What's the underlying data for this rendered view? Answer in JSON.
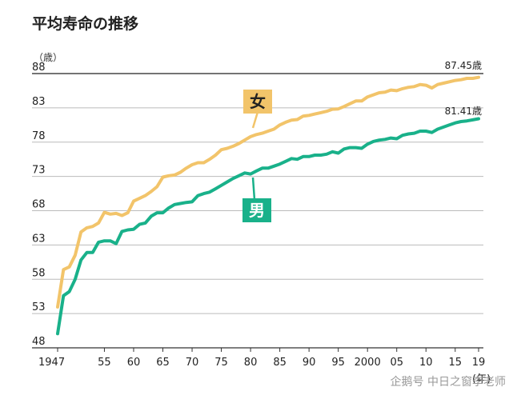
{
  "chart_data": {
    "type": "line",
    "title": "平均寿命の推移",
    "unit_label": "（歳）",
    "x_unit_label": "(年)",
    "xlim": [
      1947,
      2019
    ],
    "ylim": [
      48,
      88
    ],
    "grid": true,
    "y_ticks": [
      48,
      53,
      58,
      63,
      68,
      73,
      78,
      83,
      88
    ],
    "x_ticks": [
      {
        "value": 1947,
        "label": "1947"
      },
      {
        "value": 1955,
        "label": "55"
      },
      {
        "value": 1960,
        "label": "60"
      },
      {
        "value": 1965,
        "label": "65"
      },
      {
        "value": 1970,
        "label": "70"
      },
      {
        "value": 1975,
        "label": "75"
      },
      {
        "value": 1980,
        "label": "80"
      },
      {
        "value": 1985,
        "label": "85"
      },
      {
        "value": 1990,
        "label": "90"
      },
      {
        "value": 1995,
        "label": "95"
      },
      {
        "value": 2000,
        "label": "2000"
      },
      {
        "value": 2005,
        "label": "05"
      },
      {
        "value": 2010,
        "label": "10"
      },
      {
        "value": 2015,
        "label": "15"
      },
      {
        "value": 2019,
        "label": "19"
      }
    ],
    "series": [
      {
        "name": "女",
        "color": "#F2C46A",
        "end_label": "87.45歳",
        "points": [
          [
            1947,
            53.96
          ],
          [
            1948,
            59.4
          ],
          [
            1949,
            59.8
          ],
          [
            1950,
            61.5
          ],
          [
            1951,
            64.9
          ],
          [
            1952,
            65.5
          ],
          [
            1953,
            65.7
          ],
          [
            1954,
            66.2
          ],
          [
            1955,
            67.75
          ],
          [
            1956,
            67.5
          ],
          [
            1957,
            67.6
          ],
          [
            1958,
            67.3
          ],
          [
            1959,
            67.7
          ],
          [
            1960,
            69.4
          ],
          [
            1961,
            69.8
          ],
          [
            1962,
            70.2
          ],
          [
            1963,
            70.8
          ],
          [
            1964,
            71.5
          ],
          [
            1965,
            72.9
          ],
          [
            1966,
            73.1
          ],
          [
            1967,
            73.2
          ],
          [
            1968,
            73.6
          ],
          [
            1969,
            74.2
          ],
          [
            1970,
            74.7
          ],
          [
            1971,
            75.0
          ],
          [
            1972,
            75.0
          ],
          [
            1973,
            75.5
          ],
          [
            1974,
            76.1
          ],
          [
            1975,
            76.9
          ],
          [
            1976,
            77.1
          ],
          [
            1977,
            77.4
          ],
          [
            1978,
            77.8
          ],
          [
            1979,
            78.3
          ],
          [
            1980,
            78.8
          ],
          [
            1981,
            79.1
          ],
          [
            1982,
            79.3
          ],
          [
            1983,
            79.6
          ],
          [
            1984,
            79.9
          ],
          [
            1985,
            80.5
          ],
          [
            1986,
            80.9
          ],
          [
            1987,
            81.2
          ],
          [
            1988,
            81.3
          ],
          [
            1989,
            81.8
          ],
          [
            1990,
            81.9
          ],
          [
            1991,
            82.1
          ],
          [
            1992,
            82.3
          ],
          [
            1993,
            82.5
          ],
          [
            1994,
            82.8
          ],
          [
            1995,
            82.85
          ],
          [
            1996,
            83.2
          ],
          [
            1997,
            83.6
          ],
          [
            1998,
            84.0
          ],
          [
            1999,
            84.0
          ],
          [
            2000,
            84.6
          ],
          [
            2001,
            84.9
          ],
          [
            2002,
            85.2
          ],
          [
            2003,
            85.3
          ],
          [
            2004,
            85.6
          ],
          [
            2005,
            85.5
          ],
          [
            2006,
            85.8
          ],
          [
            2007,
            86.0
          ],
          [
            2008,
            86.1
          ],
          [
            2009,
            86.4
          ],
          [
            2010,
            86.3
          ],
          [
            2011,
            85.9
          ],
          [
            2012,
            86.4
          ],
          [
            2013,
            86.6
          ],
          [
            2014,
            86.8
          ],
          [
            2015,
            87.0
          ],
          [
            2016,
            87.1
          ],
          [
            2017,
            87.3
          ],
          [
            2018,
            87.3
          ],
          [
            2019,
            87.45
          ]
        ]
      },
      {
        "name": "男",
        "color": "#19B18A",
        "end_label": "81.41歳",
        "points": [
          [
            1947,
            50.06
          ],
          [
            1948,
            55.6
          ],
          [
            1949,
            56.2
          ],
          [
            1950,
            58.0
          ],
          [
            1951,
            60.8
          ],
          [
            1952,
            61.9
          ],
          [
            1953,
            61.9
          ],
          [
            1954,
            63.4
          ],
          [
            1955,
            63.6
          ],
          [
            1956,
            63.6
          ],
          [
            1957,
            63.2
          ],
          [
            1958,
            64.98
          ],
          [
            1959,
            65.2
          ],
          [
            1960,
            65.3
          ],
          [
            1961,
            66.0
          ],
          [
            1962,
            66.2
          ],
          [
            1963,
            67.2
          ],
          [
            1964,
            67.7
          ],
          [
            1965,
            67.7
          ],
          [
            1966,
            68.4
          ],
          [
            1967,
            68.9
          ],
          [
            1968,
            69.05
          ],
          [
            1969,
            69.2
          ],
          [
            1970,
            69.3
          ],
          [
            1971,
            70.2
          ],
          [
            1972,
            70.5
          ],
          [
            1973,
            70.7
          ],
          [
            1974,
            71.2
          ],
          [
            1975,
            71.7
          ],
          [
            1976,
            72.2
          ],
          [
            1977,
            72.7
          ],
          [
            1978,
            73.1
          ],
          [
            1979,
            73.5
          ],
          [
            1980,
            73.35
          ],
          [
            1981,
            73.8
          ],
          [
            1982,
            74.2
          ],
          [
            1983,
            74.2
          ],
          [
            1984,
            74.5
          ],
          [
            1985,
            74.8
          ],
          [
            1986,
            75.2
          ],
          [
            1987,
            75.6
          ],
          [
            1988,
            75.5
          ],
          [
            1989,
            75.9
          ],
          [
            1990,
            75.9
          ],
          [
            1991,
            76.1
          ],
          [
            1992,
            76.1
          ],
          [
            1993,
            76.25
          ],
          [
            1994,
            76.6
          ],
          [
            1995,
            76.4
          ],
          [
            1996,
            77.0
          ],
          [
            1997,
            77.2
          ],
          [
            1998,
            77.2
          ],
          [
            1999,
            77.1
          ],
          [
            2000,
            77.7
          ],
          [
            2001,
            78.1
          ],
          [
            2002,
            78.3
          ],
          [
            2003,
            78.4
          ],
          [
            2004,
            78.6
          ],
          [
            2005,
            78.5
          ],
          [
            2006,
            79.0
          ],
          [
            2007,
            79.2
          ],
          [
            2008,
            79.3
          ],
          [
            2009,
            79.6
          ],
          [
            2010,
            79.6
          ],
          [
            2011,
            79.4
          ],
          [
            2012,
            79.9
          ],
          [
            2013,
            80.2
          ],
          [
            2014,
            80.5
          ],
          [
            2015,
            80.8
          ],
          [
            2016,
            81.0
          ],
          [
            2017,
            81.1
          ],
          [
            2018,
            81.25
          ],
          [
            2019,
            81.41
          ]
        ]
      }
    ]
  },
  "watermark": "企鹅号 中日之窗李老师"
}
